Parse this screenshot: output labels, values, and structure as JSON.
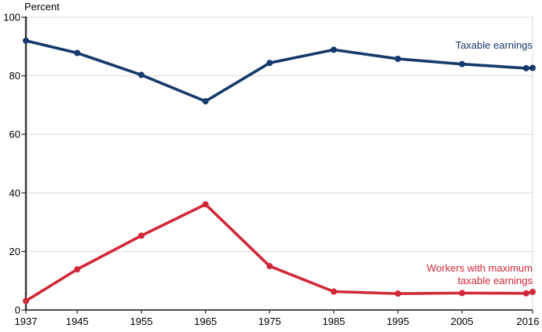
{
  "chart_data": {
    "type": "line",
    "title": "",
    "axis_unit_label": "Percent",
    "x_axis": {
      "type": "linear",
      "min": 1937,
      "max": 2016,
      "tick_years": [
        1937,
        1945,
        1955,
        1965,
        1975,
        1985,
        1995,
        2005,
        2016
      ],
      "tick_labels": [
        "1937",
        "1945",
        "1955",
        "1965",
        "1975",
        "1985",
        "1995",
        "2005",
        "2016"
      ]
    },
    "y_axis": {
      "min": 0,
      "max": 100,
      "ticks": [
        0,
        20,
        40,
        60,
        80,
        100
      ],
      "tick_labels": [
        "0",
        "20",
        "40",
        "60",
        "80",
        "100"
      ]
    },
    "grid": true,
    "legend_position": "inline-annotations",
    "style": {
      "grid_color": "#d9d9d9",
      "axis_color": "#333333",
      "text_color": "#000000",
      "marker_radius": 4,
      "line_width": 3.6
    },
    "series": [
      {
        "id": "taxable-earnings",
        "name": "Taxable earnings",
        "color": "#163A6B",
        "x": [
          1937,
          1945,
          1955,
          1965,
          1975,
          1985,
          1995,
          2005,
          2015,
          2016
        ],
        "values": [
          92.0,
          87.8,
          80.3,
          71.3,
          84.4,
          88.9,
          85.8,
          84.0,
          82.6,
          82.7
        ],
        "label_lines": [
          "Taxable earnings"
        ],
        "label_anchor": {
          "x": 678,
          "y": 62,
          "align": "end"
        }
      },
      {
        "id": "workers-maximum-taxable",
        "name": "Workers with maximum taxable earnings",
        "color": "#D0293A",
        "x": [
          1937,
          1945,
          1955,
          1965,
          1975,
          1985,
          1995,
          2005,
          2015,
          2016
        ],
        "values": [
          3.1,
          13.9,
          25.4,
          36.1,
          15.0,
          6.3,
          5.6,
          5.8,
          5.7,
          6.2
        ],
        "label_lines": [
          "Workers with maximum",
          "taxable earnings"
        ],
        "label_anchor": {
          "x": 678,
          "y": 346,
          "align": "end"
        }
      }
    ]
  }
}
